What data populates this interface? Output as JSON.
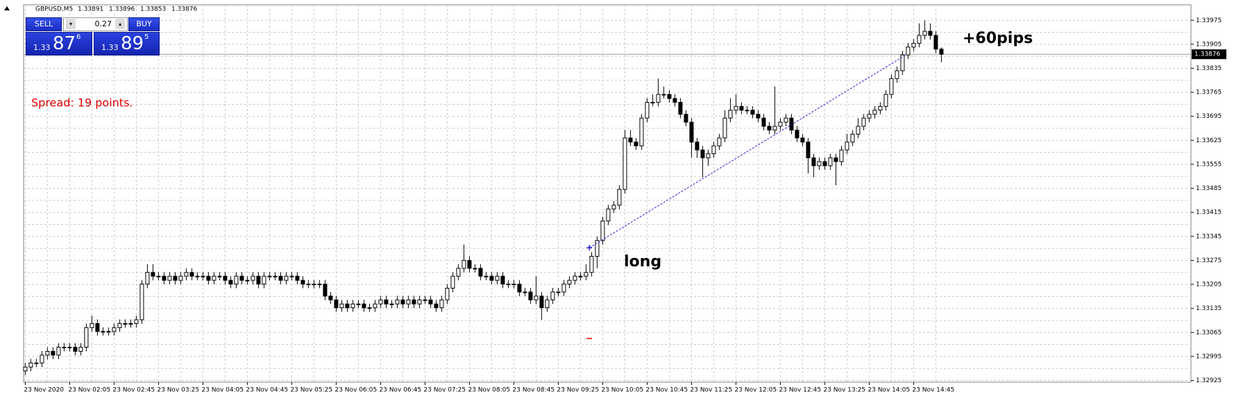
{
  "chart_data": {
    "type": "candlestick",
    "title": "GBPUSD,M5",
    "categories": [
      "23 Nov 2020",
      null,
      null,
      null,
      null,
      null,
      null,
      null,
      "23 Nov 02:05",
      null,
      null,
      null,
      null,
      null,
      null,
      null,
      "23 Nov 02:45",
      null,
      null,
      null,
      null,
      null,
      null,
      null,
      "23 Nov 03:25",
      null,
      null,
      null,
      null,
      null,
      null,
      null,
      "23 Nov 04:05",
      null,
      null,
      null,
      null,
      null,
      null,
      null,
      "23 Nov 04:45",
      null,
      null,
      null,
      null,
      null,
      null,
      null,
      "23 Nov 05:25",
      null,
      null,
      null,
      null,
      null,
      null,
      null,
      "23 Nov 06:05",
      null,
      null,
      null,
      null,
      null,
      null,
      null,
      "23 Nov 06:45",
      null,
      null,
      null,
      null,
      null,
      null,
      null,
      "23 Nov 07:25",
      null,
      null,
      null,
      null,
      null,
      null,
      null,
      "23 Nov 08:05",
      null,
      null,
      null,
      null,
      null,
      null,
      null,
      "23 Nov 08:45",
      null,
      null,
      null,
      null,
      null,
      null,
      null,
      "23 Nov 09:25",
      null,
      null,
      null,
      null,
      null,
      null,
      null,
      "23 Nov 10:05",
      null,
      null,
      null,
      null,
      null,
      null,
      null,
      "23 Nov 10:45",
      null,
      null,
      null,
      null,
      null,
      null,
      null,
      "23 Nov 11:25",
      null,
      null,
      null,
      null,
      null,
      null,
      null,
      "23 Nov 12:05",
      null,
      null,
      null,
      null,
      null,
      null,
      null,
      "23 Nov 12:45",
      null,
      null,
      null,
      null,
      null,
      null,
      null,
      "23 Nov 13:25",
      null,
      null,
      null,
      null,
      null,
      null,
      null,
      "23 Nov 14:05",
      null,
      null,
      null,
      null,
      null,
      null,
      null,
      "23 Nov 14:45",
      null,
      null,
      null,
      null,
      null
    ],
    "open": [
      1.32953,
      1.32964,
      1.32976,
      1.32976,
      1.32999,
      1.3301,
      1.32999,
      1.33022,
      1.33022,
      1.33022,
      1.3301,
      1.33022,
      1.33079,
      1.33091,
      1.33068,
      1.33068,
      1.33068,
      1.33079,
      1.33091,
      1.33091,
      1.33091,
      1.33102,
      1.33206,
      1.3324,
      1.33229,
      1.33229,
      1.33217,
      1.33229,
      1.33217,
      1.33229,
      1.3324,
      1.33229,
      1.33229,
      1.33229,
      1.33217,
      1.33229,
      1.33229,
      1.33217,
      1.33206,
      1.33229,
      1.33217,
      1.33217,
      1.33229,
      1.33206,
      1.33229,
      1.33229,
      1.33229,
      1.33217,
      1.33229,
      1.33229,
      1.33217,
      1.33206,
      1.33206,
      1.33206,
      1.33206,
      1.33171,
      1.3316,
      1.33137,
      1.33148,
      1.33137,
      1.33148,
      1.33148,
      1.33137,
      1.33137,
      1.33148,
      1.3316,
      1.33148,
      1.33148,
      1.3316,
      1.33148,
      1.3316,
      1.33148,
      1.3316,
      1.3316,
      1.33148,
      1.33137,
      1.3316,
      1.33194,
      1.33229,
      1.33252,
      1.33275,
      1.33252,
      1.33252,
      1.33229,
      1.33229,
      1.33217,
      1.33229,
      1.33206,
      1.33206,
      1.33206,
      1.33183,
      1.33183,
      1.3316,
      1.33171,
      1.33137,
      1.3316,
      1.33183,
      1.33183,
      1.33206,
      1.33217,
      1.33229,
      1.33229,
      1.3324,
      1.33287,
      1.33333,
      1.3339,
      1.33425,
      1.33436,
      1.33482,
      1.33632,
      1.3362,
      1.33609,
      1.3369,
      1.33736,
      1.33736,
      1.33759,
      1.33759,
      1.33747,
      1.33736,
      1.33701,
      1.33678,
      1.3362,
      1.33597,
      1.33574,
      1.33586,
      1.33609,
      1.33632,
      1.3369,
      1.33713,
      1.33724,
      1.33713,
      1.33713,
      1.33701,
      1.3369,
      1.33666,
      1.33655,
      1.33666,
      1.33678,
      1.3369,
      1.33655,
      1.33632,
      1.3362,
      1.33574,
      1.33551,
      1.33563,
      1.33551,
      1.33574,
      1.33563,
      1.33597,
      1.3362,
      1.33643,
      1.33666,
      1.3369,
      1.33701,
      1.33713,
      1.33724,
      1.33759,
      1.33805,
      1.33828,
      1.33874,
      1.33897,
      1.33908,
      1.33931,
      1.33943,
      1.33931,
      1.33891
    ],
    "high": [
      1.32976,
      1.32988,
      1.32988,
      1.33011,
      1.33022,
      1.33022,
      1.33034,
      1.33034,
      1.33034,
      1.33034,
      1.33034,
      1.33091,
      1.33114,
      1.33103,
      1.3308,
      1.3308,
      1.33091,
      1.33103,
      1.33103,
      1.33103,
      1.33114,
      1.33218,
      1.33264,
      1.33264,
      1.33241,
      1.33241,
      1.33241,
      1.33241,
      1.33241,
      1.33252,
      1.33252,
      1.33241,
      1.33241,
      1.33241,
      1.33241,
      1.33241,
      1.33241,
      1.33229,
      1.33241,
      1.33241,
      1.33229,
      1.33241,
      1.33241,
      1.33241,
      1.33241,
      1.33241,
      1.33241,
      1.33241,
      1.33241,
      1.33241,
      1.33229,
      1.33218,
      1.33218,
      1.33218,
      1.33218,
      1.33183,
      1.33172,
      1.3316,
      1.3316,
      1.3316,
      1.3316,
      1.3316,
      1.33149,
      1.3316,
      1.33172,
      1.33172,
      1.3316,
      1.33172,
      1.33172,
      1.33172,
      1.33172,
      1.33172,
      1.33172,
      1.33172,
      1.3316,
      1.33172,
      1.33206,
      1.33241,
      1.33264,
      1.33321,
      1.33287,
      1.33264,
      1.33264,
      1.33241,
      1.33241,
      1.33241,
      1.33241,
      1.33218,
      1.33218,
      1.33218,
      1.33195,
      1.33195,
      1.33229,
      1.33183,
      1.33172,
      1.33195,
      1.33195,
      1.33218,
      1.33229,
      1.33241,
      1.33241,
      1.33264,
      1.33299,
      1.33345,
      1.33402,
      1.33437,
      1.33448,
      1.33494,
      1.33655,
      1.33655,
      1.33632,
      1.33702,
      1.33748,
      1.33759,
      1.33805,
      1.33782,
      1.33771,
      1.33759,
      1.33748,
      1.33713,
      1.3369,
      1.33632,
      1.33609,
      1.33598,
      1.33621,
      1.33644,
      1.33713,
      1.33748,
      1.33759,
      1.33736,
      1.33725,
      1.33725,
      1.33713,
      1.33702,
      1.33678,
      1.33782,
      1.3369,
      1.33702,
      1.33702,
      1.33667,
      1.33644,
      1.33632,
      1.33586,
      1.33575,
      1.33575,
      1.33586,
      1.33586,
      1.33609,
      1.33644,
      1.33655,
      1.3369,
      1.33702,
      1.33713,
      1.33725,
      1.33736,
      1.33771,
      1.33817,
      1.3384,
      1.33886,
      1.33909,
      1.3392,
      1.33966,
      1.33975,
      1.33966,
      1.33943,
      1.33896
    ],
    "low": [
      1.32941,
      1.32952,
      1.32964,
      1.32964,
      1.32987,
      1.32987,
      1.32987,
      1.3301,
      1.3301,
      1.32998,
      1.32998,
      1.3301,
      1.33067,
      1.33056,
      1.33056,
      1.33056,
      1.33056,
      1.33067,
      1.33079,
      1.33079,
      1.33079,
      1.3309,
      1.33194,
      1.33217,
      1.33217,
      1.33205,
      1.33205,
      1.33205,
      1.33205,
      1.33217,
      1.33217,
      1.33217,
      1.33217,
      1.33205,
      1.33205,
      1.33217,
      1.33205,
      1.33194,
      1.33194,
      1.33205,
      1.33205,
      1.33205,
      1.33194,
      1.33194,
      1.33217,
      1.33217,
      1.33205,
      1.33205,
      1.33217,
      1.33205,
      1.33194,
      1.33194,
      1.33194,
      1.33194,
      1.33159,
      1.33148,
      1.33125,
      1.33125,
      1.33125,
      1.33125,
      1.33136,
      1.33125,
      1.33125,
      1.33125,
      1.33136,
      1.33136,
      1.33136,
      1.33136,
      1.33136,
      1.33136,
      1.33136,
      1.33136,
      1.33148,
      1.33136,
      1.33125,
      1.33125,
      1.33148,
      1.33182,
      1.33217,
      1.3324,
      1.3324,
      1.3324,
      1.33217,
      1.33217,
      1.33205,
      1.33205,
      1.33194,
      1.33194,
      1.33194,
      1.33171,
      1.33171,
      1.33148,
      1.33148,
      1.33102,
      1.33125,
      1.33148,
      1.33171,
      1.33171,
      1.33194,
      1.33205,
      1.33217,
      1.33217,
      1.33228,
      1.33252,
      1.33321,
      1.33378,
      1.33413,
      1.33424,
      1.3347,
      1.33608,
      1.33597,
      1.33597,
      1.33678,
      1.33724,
      1.33724,
      1.33747,
      1.33735,
      1.33724,
      1.33689,
      1.33666,
      1.33574,
      1.33574,
      1.33517,
      1.33551,
      1.33574,
      1.33597,
      1.3362,
      1.33678,
      1.33701,
      1.33701,
      1.33701,
      1.33689,
      1.33678,
      1.33654,
      1.33643,
      1.33643,
      1.33654,
      1.33666,
      1.33643,
      1.3362,
      1.33608,
      1.33528,
      1.33517,
      1.33539,
      1.33539,
      1.33539,
      1.33494,
      1.33551,
      1.33585,
      1.33608,
      1.33631,
      1.33654,
      1.33678,
      1.33689,
      1.33701,
      1.33712,
      1.33747,
      1.33793,
      1.33816,
      1.33862,
      1.33885,
      1.33896,
      1.33919,
      1.33919,
      1.33879,
      1.33853
    ],
    "close": [
      1.32964,
      1.32976,
      1.32976,
      1.32999,
      1.3301,
      1.32999,
      1.33022,
      1.33022,
      1.33022,
      1.3301,
      1.33022,
      1.33079,
      1.33091,
      1.33068,
      1.33068,
      1.33068,
      1.33079,
      1.33091,
      1.33091,
      1.33091,
      1.33102,
      1.33206,
      1.3324,
      1.33229,
      1.33229,
      1.33217,
      1.33229,
      1.33217,
      1.33229,
      1.3324,
      1.33229,
      1.33229,
      1.33229,
      1.33217,
      1.33229,
      1.33229,
      1.33217,
      1.33206,
      1.33229,
      1.33217,
      1.33217,
      1.33229,
      1.33206,
      1.33229,
      1.33229,
      1.33229,
      1.33217,
      1.33229,
      1.33229,
      1.33217,
      1.33206,
      1.33206,
      1.33206,
      1.33206,
      1.33171,
      1.3316,
      1.33137,
      1.33148,
      1.33137,
      1.33148,
      1.33148,
      1.33137,
      1.33137,
      1.33148,
      1.3316,
      1.33148,
      1.33148,
      1.3316,
      1.33148,
      1.3316,
      1.33148,
      1.3316,
      1.3316,
      1.33148,
      1.33137,
      1.3316,
      1.33194,
      1.33229,
      1.33252,
      1.33275,
      1.33252,
      1.33252,
      1.33229,
      1.33229,
      1.33217,
      1.33229,
      1.33206,
      1.33206,
      1.33206,
      1.33183,
      1.33183,
      1.3316,
      1.33171,
      1.33137,
      1.3316,
      1.33183,
      1.33183,
      1.33206,
      1.33217,
      1.33229,
      1.33229,
      1.3324,
      1.33287,
      1.33333,
      1.3339,
      1.33425,
      1.33436,
      1.33482,
      1.33632,
      1.3362,
      1.33609,
      1.3369,
      1.33736,
      1.33736,
      1.33759,
      1.33759,
      1.33747,
      1.33736,
      1.33701,
      1.33678,
      1.3362,
      1.33597,
      1.33574,
      1.33586,
      1.33609,
      1.33632,
      1.3369,
      1.33713,
      1.33724,
      1.33713,
      1.33713,
      1.33701,
      1.3369,
      1.33666,
      1.33655,
      1.33666,
      1.33678,
      1.3369,
      1.33655,
      1.33632,
      1.3362,
      1.33574,
      1.33551,
      1.33563,
      1.33551,
      1.33574,
      1.33563,
      1.33597,
      1.3362,
      1.33643,
      1.33666,
      1.3369,
      1.33701,
      1.33713,
      1.33724,
      1.33759,
      1.33805,
      1.33828,
      1.33874,
      1.33897,
      1.33908,
      1.33931,
      1.33943,
      1.33931,
      1.33891,
      1.33876
    ],
    "ylim": [
      1.3292,
      1.3402
    ],
    "yticks": [
      1.32925,
      1.32995,
      1.33065,
      1.33135,
      1.33205,
      1.33275,
      1.33345,
      1.33415,
      1.33485,
      1.33555,
      1.33625,
      1.33695,
      1.33765,
      1.33835,
      1.33905,
      1.33975
    ],
    "grid": true,
    "up_color": "#ffffff",
    "down_color": "#000000",
    "wick_color": "#000000",
    "trendline": {
      "color": "#2222cc",
      "x": [
        101.6,
        158.6
      ],
      "y": [
        1.33312,
        1.33874
      ]
    },
    "annotations": [
      "Spread: 19 points.",
      "long",
      "+60pips"
    ]
  },
  "trade_panel": {
    "sell": "SELL",
    "buy": "BUY",
    "lot": "0.27",
    "sell_price": {
      "prefix": "1.33",
      "big": "87",
      "small": "6"
    },
    "buy_price": {
      "prefix": "1.33",
      "big": "89",
      "small": "5"
    }
  }
}
